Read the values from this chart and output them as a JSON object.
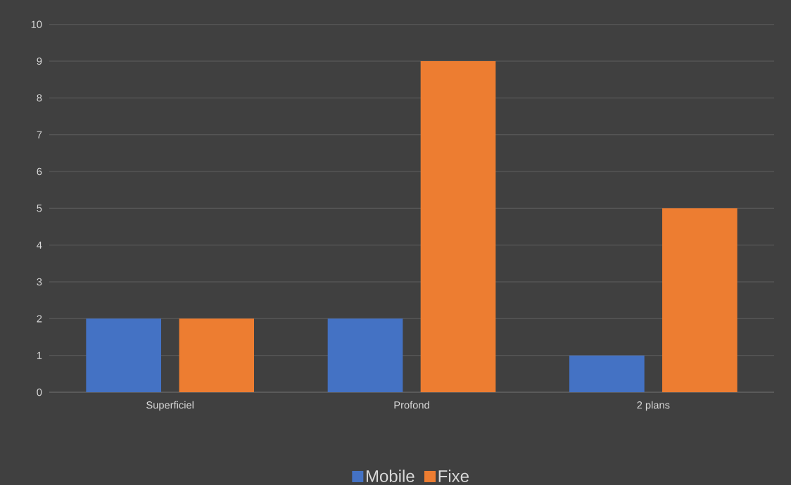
{
  "chart_data": {
    "type": "bar",
    "categories": [
      "Superficiel",
      "Profond",
      "2 plans"
    ],
    "series": [
      {
        "name": "Mobile",
        "color": "#4472c4",
        "values": [
          2,
          2,
          1
        ]
      },
      {
        "name": "Fixe",
        "color": "#ed7d31",
        "values": [
          2,
          9,
          5
        ]
      }
    ],
    "ylim": [
      0,
      10
    ],
    "yticks": [
      0,
      1,
      2,
      3,
      4,
      5,
      6,
      7,
      8,
      9,
      10
    ],
    "grid": "y",
    "legend": "bottom"
  }
}
